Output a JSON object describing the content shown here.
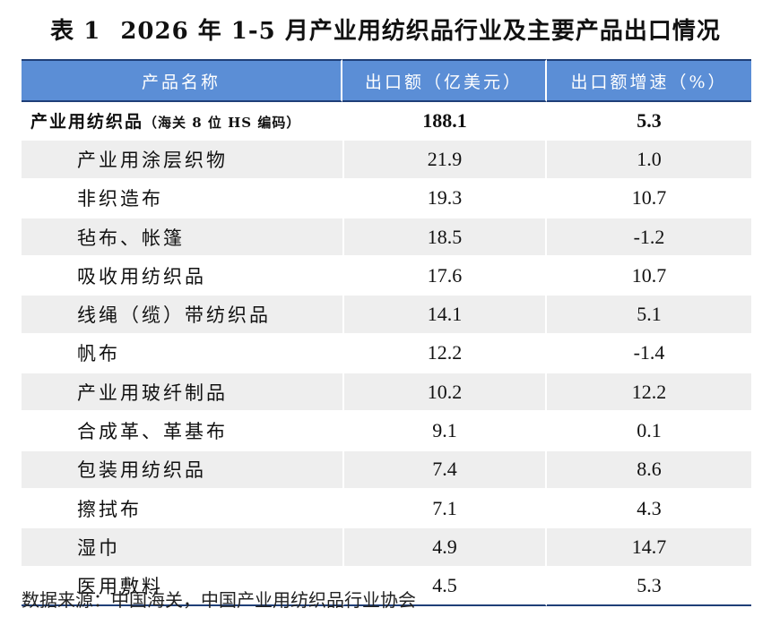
{
  "title": {
    "table_no": "表 1",
    "text": "2026 年 1-5 月产业用纺织品行业及主要产品出口情况"
  },
  "table": {
    "headers": [
      "产品名称",
      "出口额（亿美元）",
      "出口额增速（%）"
    ],
    "total": {
      "name": "产业用纺织品",
      "note": "（海关 8 位 HS 编码）",
      "export": "188.1",
      "growth": "5.3"
    },
    "rows": [
      {
        "name": "产业用涂层织物",
        "export": "21.9",
        "growth": "1.0"
      },
      {
        "name": "非织造布",
        "export": "19.3",
        "growth": "10.7"
      },
      {
        "name": "毡布、帐篷",
        "export": "18.5",
        "growth": "-1.2"
      },
      {
        "name": "吸收用纺织品",
        "export": "17.6",
        "growth": "10.7"
      },
      {
        "name": "线绳（缆）带纺织品",
        "export": "14.1",
        "growth": "5.1"
      },
      {
        "name": "帆布",
        "export": "12.2",
        "growth": "-1.4"
      },
      {
        "name": "产业用玻纤制品",
        "export": "10.2",
        "growth": "12.2"
      },
      {
        "name": "合成革、革基布",
        "export": "9.1",
        "growth": "0.1"
      },
      {
        "name": "包装用纺织品",
        "export": "7.4",
        "growth": "8.6"
      },
      {
        "name": "擦拭布",
        "export": "7.1",
        "growth": "4.3"
      },
      {
        "name": "湿巾",
        "export": "4.9",
        "growth": "14.7"
      },
      {
        "name": "医用敷料",
        "export": "4.5",
        "growth": "5.3"
      }
    ]
  },
  "source": "数据来源：中国海关，中国产业用纺织品行业协会",
  "colors": {
    "header_bg": "#5b8ed6",
    "rule": "#1f3f78",
    "stripe": "#eeeeee"
  }
}
